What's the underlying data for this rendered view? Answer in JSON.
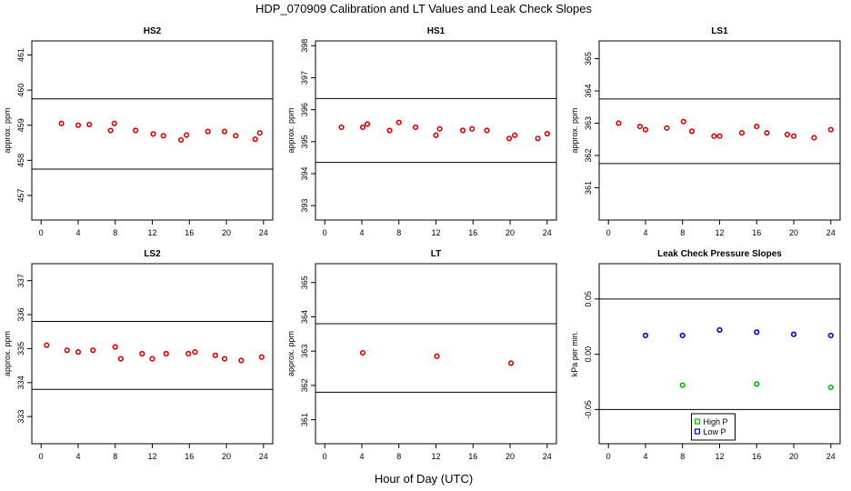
{
  "figure": {
    "title": "HDP_070909  Calibration and LT Values and Leak Check Slopes",
    "xlabel": "Hour of Day (UTC)"
  },
  "chart_data": [
    {
      "id": "hs2",
      "type": "scatter",
      "title": "HS2",
      "ylabel": "approx. ppm",
      "xlim": [
        -1,
        25
      ],
      "ylim": [
        456.3,
        461.4
      ],
      "xticks": [
        0,
        4,
        8,
        12,
        16,
        20,
        24
      ],
      "yticks": [
        457,
        458,
        459,
        460,
        461
      ],
      "hlines": [
        459.75,
        457.75
      ],
      "series": [
        {
          "name": "HS2",
          "color": "#dd0000",
          "marker": "circle",
          "x": [
            2.2,
            4.0,
            5.2,
            7.5,
            7.9,
            10.2,
            12.1,
            13.2,
            15.1,
            15.7,
            18.0,
            19.8,
            21.0,
            23.1,
            23.6
          ],
          "y": [
            459.05,
            459.0,
            459.02,
            458.85,
            459.05,
            458.85,
            458.75,
            458.7,
            458.58,
            458.72,
            458.82,
            458.82,
            458.7,
            458.6,
            458.78
          ]
        }
      ]
    },
    {
      "id": "hs1",
      "type": "scatter",
      "title": "HS1",
      "ylabel": "approx. ppm",
      "xlim": [
        -1,
        25
      ],
      "ylim": [
        392.55,
        398.15
      ],
      "xticks": [
        0,
        4,
        8,
        12,
        16,
        20,
        24
      ],
      "yticks": [
        393,
        394,
        395,
        396,
        397,
        398
      ],
      "hlines": [
        396.35,
        394.35
      ],
      "series": [
        {
          "name": "HS1",
          "color": "#dd0000",
          "marker": "circle",
          "x": [
            1.8,
            4.1,
            4.6,
            7.0,
            8.0,
            9.8,
            12.0,
            12.4,
            14.9,
            15.9,
            17.5,
            19.9,
            20.5,
            23.0,
            24.0
          ],
          "y": [
            395.45,
            395.45,
            395.55,
            395.35,
            395.6,
            395.45,
            395.2,
            395.4,
            395.35,
            395.4,
            395.35,
            395.1,
            395.2,
            395.1,
            395.25
          ]
        }
      ]
    },
    {
      "id": "ls1",
      "type": "scatter",
      "title": "LS1",
      "ylabel": "approx. ppm",
      "xlim": [
        -1,
        25
      ],
      "ylim": [
        360.0,
        365.55
      ],
      "xticks": [
        0,
        4,
        8,
        12,
        16,
        20,
        24
      ],
      "yticks": [
        361,
        362,
        363,
        364,
        365
      ],
      "hlines": [
        363.75,
        361.75
      ],
      "series": [
        {
          "name": "LS1",
          "color": "#dd0000",
          "marker": "circle",
          "x": [
            1.1,
            3.4,
            4.0,
            6.3,
            8.1,
            9.0,
            11.4,
            12.0,
            14.4,
            16.0,
            17.1,
            19.3,
            20.0,
            22.2,
            24.0
          ],
          "y": [
            363.0,
            362.9,
            362.8,
            362.85,
            363.05,
            362.75,
            362.6,
            362.6,
            362.7,
            362.9,
            362.7,
            362.65,
            362.6,
            362.55,
            362.8
          ]
        }
      ]
    },
    {
      "id": "ls2",
      "type": "scatter",
      "title": "LS2",
      "ylabel": "approx. ppm",
      "xlim": [
        -1,
        25
      ],
      "ylim": [
        332.2,
        337.5
      ],
      "xticks": [
        0,
        4,
        8,
        12,
        16,
        20,
        24
      ],
      "yticks": [
        333,
        334,
        335,
        336,
        337
      ],
      "hlines": [
        335.8,
        333.8
      ],
      "series": [
        {
          "name": "LS2",
          "color": "#dd0000",
          "marker": "circle",
          "x": [
            0.6,
            2.8,
            4.0,
            5.6,
            8.0,
            8.6,
            10.9,
            12.0,
            13.5,
            15.9,
            16.6,
            18.8,
            19.8,
            21.6,
            23.8
          ],
          "y": [
            335.1,
            334.95,
            334.9,
            334.95,
            335.05,
            334.7,
            334.85,
            334.7,
            334.85,
            334.85,
            334.9,
            334.8,
            334.7,
            334.65,
            334.75
          ]
        }
      ]
    },
    {
      "id": "lt",
      "type": "scatter",
      "title": "LT",
      "ylabel": "approx. ppm",
      "xlim": [
        -1,
        25
      ],
      "ylim": [
        360.3,
        365.55
      ],
      "xticks": [
        0,
        4,
        8,
        12,
        16,
        20,
        24
      ],
      "yticks": [
        361,
        362,
        363,
        364,
        365
      ],
      "hlines": [
        363.8,
        361.8
      ],
      "series": [
        {
          "name": "LT",
          "color": "#dd0000",
          "marker": "circle",
          "x": [
            4.1,
            12.1,
            20.1
          ],
          "y": [
            362.95,
            362.85,
            362.65
          ]
        }
      ]
    },
    {
      "id": "leak",
      "type": "scatter",
      "title": "Leak Check Pressure Slopes",
      "ylabel": "kPa per min.",
      "xlim": [
        -1,
        25
      ],
      "ylim": [
        -0.081,
        0.082
      ],
      "xticks": [
        0,
        4,
        8,
        12,
        16,
        20,
        24
      ],
      "yticks": [
        -0.05,
        0.0,
        0.05
      ],
      "ytick_labels": [
        "-0.05",
        "0.00",
        "0.05"
      ],
      "hlines": [
        0.05,
        -0.05
      ],
      "legend_position": "bottom-center",
      "series": [
        {
          "name": "High P",
          "color": "#00bb00",
          "marker": "circle",
          "x": [
            8.0,
            16.0,
            24.0
          ],
          "y": [
            -0.028,
            -0.027,
            -0.03
          ]
        },
        {
          "name": "Low P",
          "color": "#0000cc",
          "marker": "circle",
          "x": [
            4.0,
            8.0,
            12.0,
            16.0,
            20.0,
            24.0
          ],
          "y": [
            0.017,
            0.017,
            0.022,
            0.02,
            0.018,
            0.017
          ]
        }
      ]
    }
  ]
}
